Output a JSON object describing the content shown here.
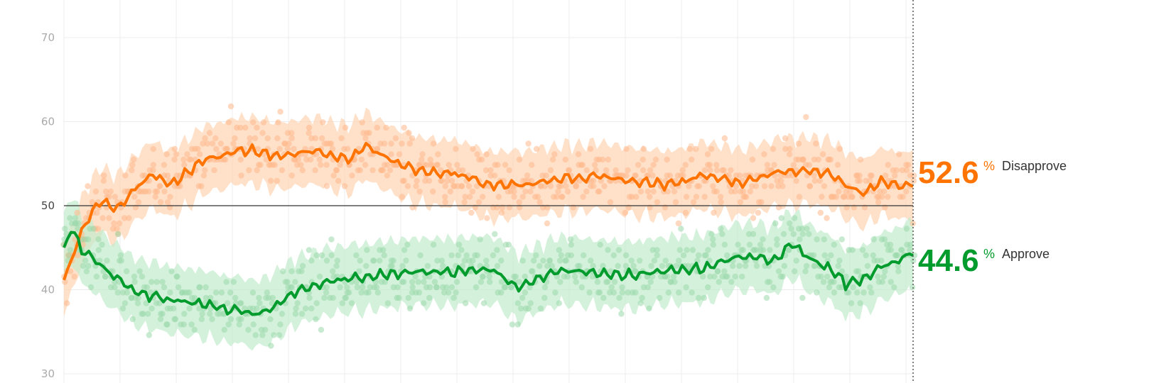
{
  "chart_data": {
    "type": "line",
    "title": "",
    "xlabel": "",
    "ylabel": "",
    "ylim": [
      30,
      75
    ],
    "y_ticks": [
      70,
      60,
      50,
      40,
      30
    ],
    "tick_labels": [
      "70",
      "60",
      "50",
      "40",
      "30"
    ],
    "reference_line": 50,
    "grid": true,
    "n_points": 240,
    "series": [
      {
        "name": "Disapprove",
        "color": "#ff7300",
        "dot_color": "#ffb88a",
        "band_color": "#ffd4b3",
        "end_value": "52.6",
        "keypoints": [
          [
            0,
            41
          ],
          [
            5,
            47
          ],
          [
            10,
            50.7
          ],
          [
            15,
            49.5
          ],
          [
            20,
            52
          ],
          [
            25,
            53.8
          ],
          [
            30,
            52.5
          ],
          [
            40,
            55.5
          ],
          [
            50,
            56.6
          ],
          [
            60,
            56
          ],
          [
            70,
            56.5
          ],
          [
            80,
            55.5
          ],
          [
            85,
            57.2
          ],
          [
            90,
            55.8
          ],
          [
            100,
            54
          ],
          [
            110,
            53.8
          ],
          [
            120,
            52.5
          ],
          [
            130,
            52.6
          ],
          [
            140,
            53.2
          ],
          [
            150,
            53.5
          ],
          [
            160,
            52.9
          ],
          [
            170,
            52.5
          ],
          [
            180,
            53.6
          ],
          [
            185,
            53.2
          ],
          [
            190,
            52.7
          ],
          [
            200,
            53.9
          ],
          [
            210,
            54.3
          ],
          [
            215,
            53.8
          ],
          [
            220,
            52.5
          ],
          [
            225,
            51.5
          ],
          [
            230,
            52.8
          ],
          [
            235,
            52.3
          ],
          [
            239,
            52.6
          ]
        ]
      },
      {
        "name": "Approve",
        "color": "#009b2d",
        "dot_color": "#9ad9ac",
        "band_color": "#c2ebcc",
        "end_value": "44.6",
        "keypoints": [
          [
            0,
            44.5
          ],
          [
            2,
            47.5
          ],
          [
            5,
            44.8
          ],
          [
            12,
            42.5
          ],
          [
            20,
            39.8
          ],
          [
            30,
            38.8
          ],
          [
            40,
            38.2
          ],
          [
            50,
            37.5
          ],
          [
            55,
            37.2
          ],
          [
            60,
            38.2
          ],
          [
            65,
            39.8
          ],
          [
            70,
            40.5
          ],
          [
            80,
            41.3
          ],
          [
            90,
            41.8
          ],
          [
            100,
            42.1
          ],
          [
            110,
            42.2
          ],
          [
            120,
            42.5
          ],
          [
            128,
            40.2
          ],
          [
            135,
            41.6
          ],
          [
            140,
            42.3
          ],
          [
            150,
            42
          ],
          [
            160,
            41.6
          ],
          [
            170,
            42.3
          ],
          [
            180,
            42.5
          ],
          [
            185,
            43.2
          ],
          [
            190,
            44
          ],
          [
            200,
            43.5
          ],
          [
            205,
            45.4
          ],
          [
            210,
            43.6
          ],
          [
            215,
            42.7
          ],
          [
            220,
            40.8
          ],
          [
            225,
            41.3
          ],
          [
            230,
            42.8
          ],
          [
            235,
            43.4
          ],
          [
            239,
            44.6
          ]
        ]
      }
    ]
  },
  "end_labels": {
    "percent_sign": "%"
  }
}
